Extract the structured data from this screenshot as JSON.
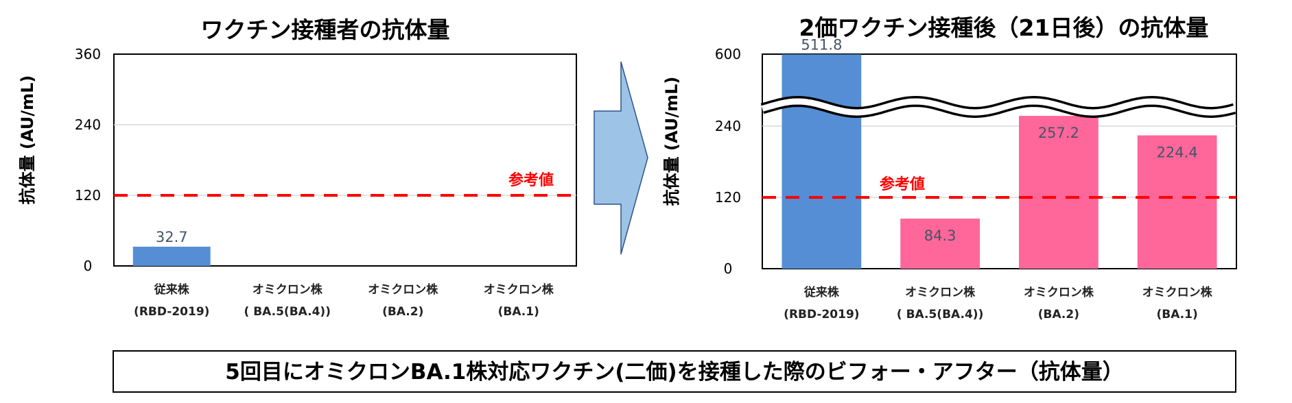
{
  "chart_data": [
    {
      "type": "bar",
      "title": "ワクチン接種者の抗体量",
      "ylabel": "抗体量 (AU/mL)",
      "xlabel": "",
      "ylim": [
        0,
        360
      ],
      "yticks": [
        0,
        120,
        240,
        360
      ],
      "ytick_labels": [
        "0",
        "120",
        "240",
        "360"
      ],
      "grid": true,
      "categories": [
        [
          "従来株",
          "(RBD-2019)"
        ],
        [
          "オミクロン株",
          "( BA.5(BA.4))"
        ],
        [
          "オミクロン株",
          "(BA.2)"
        ],
        [
          "オミクロン株",
          "(BA.1)"
        ]
      ],
      "values": [
        32.7,
        null,
        null,
        null
      ],
      "value_labels": [
        "32.7",
        "",
        "",
        ""
      ],
      "bar_colors": [
        "#558ED5",
        "#558ED5",
        "#558ED5",
        "#558ED5"
      ],
      "reference_line": {
        "value": 120,
        "label": "参考値",
        "color": "#FF0000"
      }
    },
    {
      "type": "bar",
      "title": "2価ワクチン接種後（21日後）の抗体量",
      "ylabel": "抗体量 (AU/mL)",
      "xlabel": "",
      "ylim": [
        0,
        600
      ],
      "axis_break": true,
      "yticks": [
        0,
        120,
        240,
        600
      ],
      "ytick_labels": [
        "0",
        "120",
        "240",
        "600"
      ],
      "grid": true,
      "categories": [
        [
          "従来株",
          "(RBD-2019)"
        ],
        [
          "オミクロン株",
          "( BA.5(BA.4))"
        ],
        [
          "オミクロン株",
          "(BA.2)"
        ],
        [
          "オミクロン株",
          "(BA.1)"
        ]
      ],
      "values": [
        511.8,
        84.3,
        257.2,
        224.4
      ],
      "value_labels": [
        "511.8",
        "84.3",
        "257.2",
        "224.4"
      ],
      "bar_colors": [
        "#558ED5",
        "#FF6699",
        "#FF6699",
        "#FF6699"
      ],
      "reference_line": {
        "value": 120,
        "label": "参考値",
        "color": "#FF0000"
      }
    }
  ],
  "footer": "5回目にオミクロンBA.1株対応ワクチン(二価)を接種した際のビフォー・アフター（抗体量）",
  "colors": {
    "label_text": "#44546A",
    "arrow_fill": "#9DC3E6",
    "arrow_stroke": "#2F528F",
    "grid": "#D9D9D9"
  }
}
